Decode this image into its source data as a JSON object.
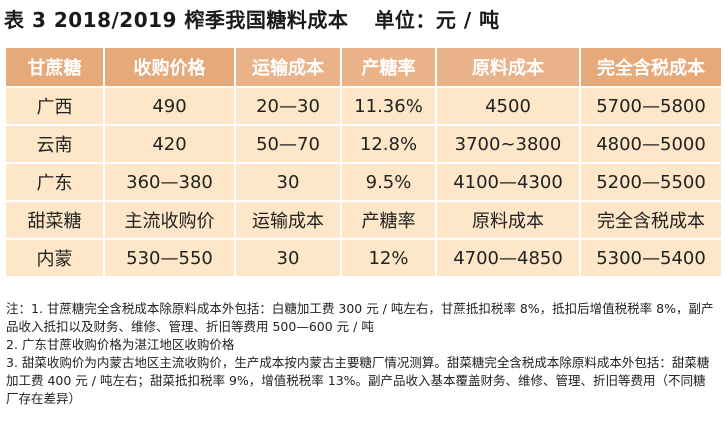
{
  "caption": {
    "title": "表 3  2018/2019 榨季我国糖料成本",
    "unit": "单位：元 / 吨"
  },
  "table": {
    "headers": [
      "甘蔗糖",
      "收购价格",
      "运输成本",
      "产糖率",
      "原料成本",
      "完全含税成本"
    ],
    "rows": [
      [
        "广西",
        "490",
        "20—30",
        "11.36%",
        "4500",
        "5700—5800"
      ],
      [
        "云南",
        "420",
        "50—70",
        "12.8%",
        "3700~3800",
        "4800—5000"
      ],
      [
        "广东",
        "360—380",
        "30",
        "9.5%",
        "4100—4300",
        "5200—5500"
      ],
      [
        "甜菜糖",
        "主流收购价",
        "运输成本",
        "产糖率",
        "原料成本",
        "完全含税成本"
      ],
      [
        "内蒙",
        "530—550",
        "30",
        "12%",
        "4700—4850",
        "5300—5400"
      ]
    ]
  },
  "notes": [
    "注：1. 甘蔗糖完全含税成本除原料成本外包括：白糖加工费 300 元 / 吨左右，甘蔗抵扣税率 8%，抵扣后增值税税率 8%，副产品收入抵扣以及财务、维修、管理、折旧等费用 500—600 元 / 吨",
    "2. 广东甘蔗收购价格为湛江地区收购价格",
    "3. 甜菜收购价为内蒙古地区主流收购价，生产成本按内蒙古主要糖厂情况测算。甜菜糖完全含税成本除原料成本外包括：甜菜糖加工费 400 元 / 吨左右；甜菜抵扣税率 9%，增值税税率 13%。副产品收入基本覆盖财务、维修、管理、折旧等费用（不同糖厂存在差异）"
  ],
  "colors": {
    "header_bg": "#e6a97a",
    "cell_bg": "#fde7c8"
  }
}
